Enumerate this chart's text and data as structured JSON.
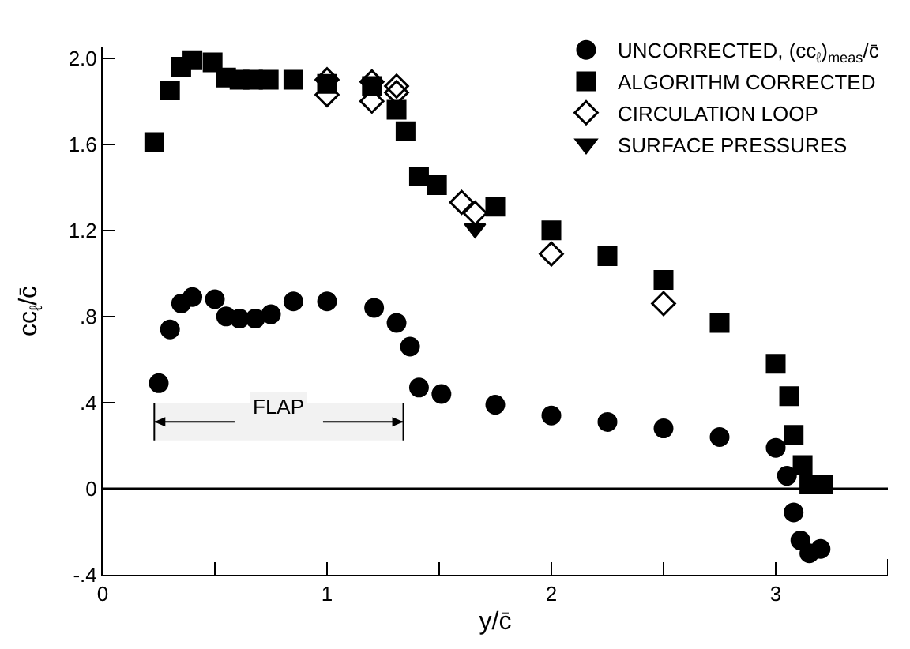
{
  "chart_data": {
    "type": "scatter",
    "xlabel": "y/c̄",
    "ylabel": "cc$_{ℓ}$/c̄",
    "xlim": [
      0,
      3.5
    ],
    "xticks": [
      0,
      {
        "value": 0.5,
        "label": null
      },
      1,
      {
        "value": 1.5,
        "label": null
      },
      2,
      {
        "value": 2.5,
        "label": null
      },
      3,
      {
        "value": 3.5,
        "label": null
      }
    ],
    "ylim": [
      -0.4,
      2.05
    ],
    "yticks": [
      {
        "value": -0.4,
        "label": "-.4"
      },
      0,
      {
        "value": 0.4,
        "label": ".4"
      },
      {
        "value": 0.8,
        "label": ".8"
      },
      1.2,
      1.6,
      {
        "value": 2.0,
        "label": "2.0"
      }
    ],
    "grid": false,
    "legend": "top right",
    "series": [
      {
        "name": "UNCORRECTED, (cc$_{ℓ}$)$_{meas}$/c̄",
        "color": "#000000",
        "marker": "circle",
        "x": [
          0.25,
          0.3,
          0.35,
          0.4,
          0.5,
          0.55,
          0.61,
          0.68,
          0.75,
          0.85,
          1.0,
          1.21,
          1.31,
          1.37,
          1.41,
          1.51,
          1.75,
          2.0,
          2.25,
          2.5,
          2.75,
          3.0,
          3.05,
          3.08,
          3.11,
          3.15,
          3.2
        ],
        "values": [
          0.49,
          0.74,
          0.86,
          0.89,
          0.88,
          0.8,
          0.79,
          0.79,
          0.81,
          0.87,
          0.87,
          0.84,
          0.77,
          0.66,
          0.47,
          0.44,
          0.39,
          0.34,
          0.31,
          0.28,
          0.24,
          0.19,
          0.06,
          -0.11,
          -0.24,
          -0.3,
          -0.28
        ]
      },
      {
        "name": "ALGORITHM CORRECTED",
        "color": "#000000",
        "marker": "square",
        "x": [
          0.23,
          0.3,
          0.35,
          0.4,
          0.49,
          0.55,
          0.61,
          0.67,
          0.74,
          0.85,
          1.0,
          1.2,
          1.31,
          1.35,
          1.41,
          1.49,
          1.75,
          2.0,
          2.25,
          2.5,
          2.75,
          3.0,
          3.06,
          3.08,
          3.12,
          3.15,
          3.21
        ],
        "values": [
          1.61,
          1.85,
          1.96,
          1.99,
          1.98,
          1.91,
          1.9,
          1.9,
          1.9,
          1.9,
          1.88,
          1.87,
          1.76,
          1.66,
          1.45,
          1.41,
          1.31,
          1.2,
          1.08,
          0.97,
          0.77,
          0.58,
          0.43,
          0.25,
          0.11,
          0.02,
          0.02
        ]
      },
      {
        "name": "CIRCULATION LOOP",
        "color": "#000000",
        "marker": "diamond",
        "x": [
          1.0,
          1.0,
          1.2,
          1.2,
          1.31,
          1.31,
          1.6,
          1.66,
          2.0,
          2.5
        ],
        "values": [
          1.9,
          1.83,
          1.89,
          1.8,
          1.87,
          1.84,
          1.33,
          1.28,
          1.09,
          0.86
        ]
      },
      {
        "name": "SURFACE PRESSURES",
        "color": "#000000",
        "marker": "triangle",
        "x": [
          1.66
        ],
        "values": [
          1.21
        ]
      }
    ],
    "ref_lines": [
      {
        "axis": "y",
        "value": 0,
        "color": "#000000"
      }
    ],
    "bands": [
      {
        "axis": "x",
        "from": 0.23,
        "to": 1.34,
        "label": "FLAP"
      }
    ]
  }
}
